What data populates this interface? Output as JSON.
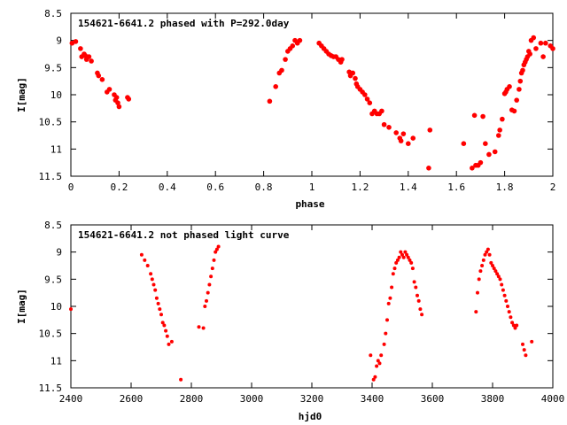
{
  "chart_data": [
    {
      "type": "scatter",
      "title": "154621-6641.2 phased with P=292.0day",
      "xlabel": "phase",
      "ylabel": "I[mag]",
      "xlim": [
        0,
        2
      ],
      "ylim": [
        11.5,
        8.5
      ],
      "y_inverted": true,
      "grid": false,
      "marker_color": "#ff0000",
      "x_ticks": [
        "0",
        "0.2",
        "0.4",
        "0.6",
        "0.8",
        "1",
        "1.2",
        "1.4",
        "1.6",
        "1.8",
        "2"
      ],
      "y_ticks": [
        "8.5",
        "9",
        "9.5",
        "10",
        "10.5",
        "11",
        "11.5"
      ],
      "x": [
        0.005,
        0.02,
        0.04,
        0.045,
        0.055,
        0.06,
        0.065,
        0.075,
        0.085,
        0.11,
        0.115,
        0.13,
        0.15,
        0.16,
        0.18,
        0.185,
        0.19,
        0.195,
        0.2,
        0.235,
        0.24,
        0.825,
        0.85,
        0.865,
        0.875,
        0.89,
        0.9,
        0.91,
        0.92,
        0.93,
        0.94,
        0.95,
        1.03,
        1.04,
        1.05,
        1.06,
        1.07,
        1.08,
        1.09,
        1.1,
        1.11,
        1.12,
        1.125,
        1.155,
        1.16,
        1.17,
        1.18,
        1.185,
        1.19,
        1.2,
        1.21,
        1.22,
        1.23,
        1.24,
        1.25,
        1.26,
        1.27,
        1.28,
        1.29,
        1.3,
        1.32,
        1.35,
        1.365,
        1.37,
        1.38,
        1.4,
        1.42,
        1.485,
        1.49,
        1.63,
        1.665,
        1.675,
        1.68,
        1.69,
        1.7,
        1.71,
        1.72,
        1.735,
        1.76,
        1.775,
        1.78,
        1.79,
        1.8,
        1.805,
        1.81,
        1.82,
        1.83,
        1.84,
        1.85,
        1.86,
        1.865,
        1.87,
        1.875,
        1.88,
        1.885,
        1.89,
        1.895,
        1.9,
        1.905,
        1.91,
        1.92,
        1.93,
        1.95,
        1.96,
        1.97,
        1.99,
        2.0
      ],
      "y": [
        9.05,
        9.02,
        9.15,
        9.3,
        9.25,
        9.28,
        9.35,
        9.3,
        9.38,
        9.6,
        9.65,
        9.72,
        9.95,
        9.9,
        10.0,
        10.1,
        10.05,
        10.15,
        10.22,
        10.05,
        10.08,
        10.12,
        9.85,
        9.6,
        9.55,
        9.35,
        9.2,
        9.15,
        9.1,
        9.0,
        9.05,
        9.0,
        9.05,
        9.1,
        9.15,
        9.2,
        9.25,
        9.28,
        9.3,
        9.3,
        9.35,
        9.4,
        9.35,
        9.58,
        9.65,
        9.6,
        9.7,
        9.8,
        9.85,
        9.9,
        9.95,
        10.0,
        10.08,
        10.15,
        10.35,
        10.3,
        10.35,
        10.35,
        10.3,
        10.55,
        10.6,
        10.7,
        10.8,
        10.85,
        10.72,
        10.9,
        10.8,
        11.35,
        10.65,
        10.9,
        11.35,
        10.38,
        11.3,
        11.3,
        11.25,
        10.4,
        10.9,
        11.1,
        11.05,
        10.75,
        10.65,
        10.45,
        9.98,
        9.95,
        9.9,
        9.85,
        10.28,
        10.3,
        10.1,
        9.9,
        9.75,
        9.6,
        9.55,
        9.45,
        9.4,
        9.35,
        9.3,
        9.2,
        9.25,
        9.0,
        8.95,
        9.15,
        9.05,
        9.3,
        9.05,
        9.1,
        9.15
      ]
    },
    {
      "type": "scatter",
      "title": "154621-6641.2 not phased light curve",
      "xlabel": "hjd0",
      "ylabel": "I[mag]",
      "xlim": [
        2400,
        4000
      ],
      "ylim": [
        11.5,
        8.5
      ],
      "y_inverted": true,
      "grid": false,
      "marker_color": "#ff0000",
      "x_ticks": [
        "2400",
        "2600",
        "2800",
        "3000",
        "3200",
        "3400",
        "3600",
        "3800",
        "4000"
      ],
      "y_ticks": [
        "8.5",
        "9",
        "9.5",
        "10",
        "10.5",
        "11",
        "11.5"
      ],
      "x": [
        2400,
        2635,
        2645,
        2655,
        2665,
        2670,
        2675,
        2680,
        2685,
        2690,
        2695,
        2700,
        2705,
        2710,
        2715,
        2720,
        2725,
        2735,
        2765,
        2825,
        2840,
        2845,
        2850,
        2855,
        2860,
        2865,
        2870,
        2875,
        2880,
        2885,
        2890,
        3395,
        3405,
        3410,
        3415,
        3420,
        3425,
        3430,
        3440,
        3445,
        3450,
        3455,
        3460,
        3465,
        3470,
        3475,
        3480,
        3485,
        3490,
        3495,
        3500,
        3505,
        3510,
        3515,
        3520,
        3525,
        3530,
        3535,
        3540,
        3545,
        3550,
        3555,
        3560,
        3565,
        3745,
        3750,
        3755,
        3760,
        3765,
        3770,
        3775,
        3780,
        3785,
        3790,
        3795,
        3800,
        3805,
        3810,
        3815,
        3820,
        3825,
        3830,
        3835,
        3840,
        3845,
        3850,
        3855,
        3860,
        3865,
        3870,
        3875,
        3880,
        3900,
        3905,
        3910,
        3930
      ],
      "y": [
        10.05,
        9.05,
        9.15,
        9.25,
        9.4,
        9.5,
        9.6,
        9.7,
        9.85,
        9.95,
        10.05,
        10.15,
        10.3,
        10.35,
        10.45,
        10.55,
        10.7,
        10.65,
        11.35,
        10.38,
        10.4,
        10.0,
        9.9,
        9.75,
        9.6,
        9.45,
        9.3,
        9.15,
        9.0,
        8.95,
        8.9,
        10.9,
        11.35,
        11.3,
        11.1,
        11.0,
        11.05,
        10.9,
        10.7,
        10.5,
        10.25,
        9.95,
        9.85,
        9.65,
        9.4,
        9.3,
        9.2,
        9.15,
        9.1,
        9.0,
        9.05,
        9.1,
        9.0,
        9.05,
        9.1,
        9.15,
        9.2,
        9.3,
        9.55,
        9.65,
        9.8,
        9.9,
        10.05,
        10.15,
        10.1,
        9.75,
        9.5,
        9.35,
        9.25,
        9.15,
        9.05,
        9.0,
        8.95,
        9.05,
        9.2,
        9.25,
        9.3,
        9.35,
        9.4,
        9.45,
        9.5,
        9.6,
        9.7,
        9.8,
        9.9,
        10.0,
        10.1,
        10.2,
        10.3,
        10.35,
        10.4,
        10.35,
        10.7,
        10.8,
        10.9,
        10.65
      ]
    }
  ]
}
